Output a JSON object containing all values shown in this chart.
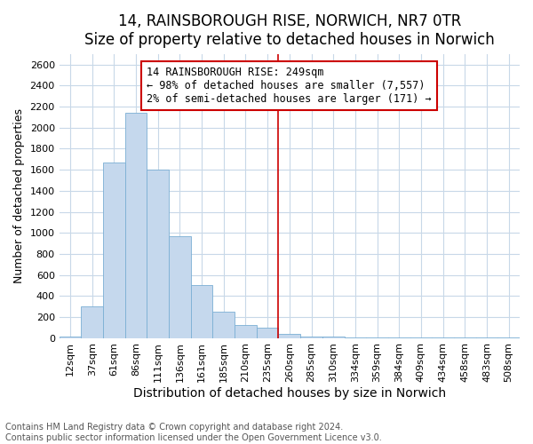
{
  "title": "14, RAINSBOROUGH RISE, NORWICH, NR7 0TR",
  "subtitle": "Size of property relative to detached houses in Norwich",
  "xlabel": "Distribution of detached houses by size in Norwich",
  "ylabel": "Number of detached properties",
  "footnote1": "Contains HM Land Registry data © Crown copyright and database right 2024.",
  "footnote2": "Contains public sector information licensed under the Open Government Licence v3.0.",
  "annotation_line1": "14 RAINSBOROUGH RISE: 249sqm",
  "annotation_line2": "← 98% of detached houses are smaller (7,557)",
  "annotation_line3": "2% of semi-detached houses are larger (171) →",
  "bar_color": "#c5d8ed",
  "bar_edge_color": "#7bafd4",
  "vline_color": "#cc0000",
  "annotation_box_edge_color": "#cc0000",
  "annotation_box_face_color": "#ffffff",
  "categories": [
    "12sqm",
    "37sqm",
    "61sqm",
    "86sqm",
    "111sqm",
    "136sqm",
    "161sqm",
    "185sqm",
    "210sqm",
    "235sqm",
    "260sqm",
    "285sqm",
    "310sqm",
    "334sqm",
    "359sqm",
    "384sqm",
    "409sqm",
    "434sqm",
    "458sqm",
    "483sqm",
    "508sqm"
  ],
  "values": [
    15,
    300,
    1670,
    2140,
    1600,
    970,
    500,
    250,
    125,
    100,
    35,
    15,
    10,
    5,
    5,
    5,
    5,
    5,
    5,
    5,
    5
  ],
  "ylim": [
    0,
    2700
  ],
  "yticks": [
    0,
    200,
    400,
    600,
    800,
    1000,
    1200,
    1400,
    1600,
    1800,
    2000,
    2200,
    2400,
    2600
  ],
  "vline_x_index": 10,
  "title_fontsize": 12,
  "subtitle_fontsize": 10,
  "xlabel_fontsize": 10,
  "ylabel_fontsize": 9,
  "tick_fontsize": 8,
  "annotation_fontsize": 8.5,
  "footnote_fontsize": 7,
  "background_color": "#ffffff",
  "grid_color": "#c8d8e8"
}
